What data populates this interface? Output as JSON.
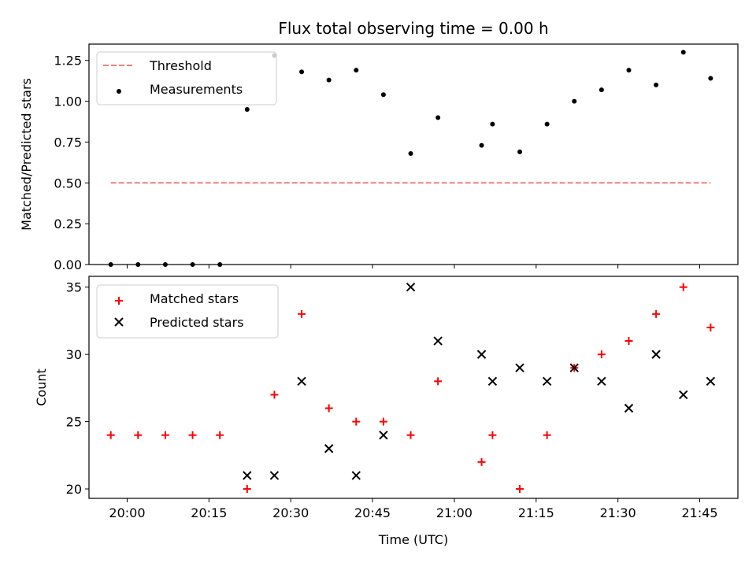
{
  "chart_data": [
    {
      "type": "scatter",
      "title": "Flux total observing time = 0.00 h",
      "xlabel": "",
      "ylabel": "Matched/Predicted stars",
      "ylim": [
        0,
        1.35
      ],
      "yticks": [
        0.0,
        0.25,
        0.5,
        0.75,
        1.0,
        1.25
      ],
      "ytick_labels": [
        "0.00",
        "0.25",
        "0.50",
        "0.75",
        "1.00",
        "1.25"
      ],
      "grid": false,
      "legend_position": "top-left",
      "series": [
        {
          "name": "Threshold",
          "style": "dashed-line",
          "color": "#f08080",
          "x": [
            "19:57",
            "21:47"
          ],
          "values": [
            0.5,
            0.5
          ]
        },
        {
          "name": "Measurements",
          "style": "dot",
          "color": "#000000",
          "x": [
            "19:57",
            "20:02",
            "20:07",
            "20:12",
            "20:17",
            "20:22",
            "20:27",
            "20:32",
            "20:37",
            "20:42",
            "20:47",
            "20:52",
            "20:57",
            "21:05",
            "21:07",
            "21:12",
            "21:17",
            "21:22",
            "21:27",
            "21:32",
            "21:37",
            "21:42",
            "21:47"
          ],
          "values": [
            0.0,
            0.0,
            0.0,
            0.0,
            0.0,
            0.95,
            1.28,
            1.18,
            1.13,
            1.19,
            1.04,
            0.68,
            0.9,
            0.73,
            0.86,
            0.69,
            0.86,
            1.0,
            1.07,
            1.19,
            1.1,
            1.3,
            1.14
          ]
        }
      ]
    },
    {
      "type": "scatter",
      "title": "",
      "xlabel": "Time (UTC)",
      "ylabel": "Count",
      "ylim": [
        19.3,
        35.8
      ],
      "yticks": [
        20,
        25,
        30,
        35
      ],
      "ytick_labels": [
        "20",
        "25",
        "30",
        "35"
      ],
      "xlim": [
        "19:53",
        "21:52"
      ],
      "xticks": [
        "20:00",
        "20:15",
        "20:30",
        "20:45",
        "21:00",
        "21:15",
        "21:30",
        "21:45"
      ],
      "grid": false,
      "legend_position": "top-left",
      "series": [
        {
          "name": "Matched stars",
          "style": "plus",
          "color": "#ff0000",
          "x": [
            "19:57",
            "20:02",
            "20:07",
            "20:12",
            "20:17",
            "20:22",
            "20:27",
            "20:32",
            "20:37",
            "20:42",
            "20:47",
            "20:52",
            "20:57",
            "21:05",
            "21:07",
            "21:12",
            "21:17",
            "21:22",
            "21:27",
            "21:32",
            "21:37",
            "21:42",
            "21:47"
          ],
          "values": [
            24,
            24,
            24,
            24,
            24,
            20,
            27,
            33,
            26,
            25,
            25,
            24,
            28,
            22,
            24,
            20,
            24,
            29,
            30,
            31,
            33,
            35,
            32
          ]
        },
        {
          "name": "Predicted stars",
          "style": "x",
          "color": "#000000",
          "x": [
            "20:22",
            "20:27",
            "20:32",
            "20:37",
            "20:42",
            "20:47",
            "20:52",
            "20:57",
            "21:05",
            "21:07",
            "21:12",
            "21:17",
            "21:22",
            "21:27",
            "21:32",
            "21:37",
            "21:42",
            "21:47"
          ],
          "values": [
            21,
            21,
            28,
            23,
            21,
            24,
            35,
            31,
            30,
            28,
            29,
            28,
            29,
            28,
            26,
            30,
            27,
            28
          ]
        }
      ]
    }
  ]
}
